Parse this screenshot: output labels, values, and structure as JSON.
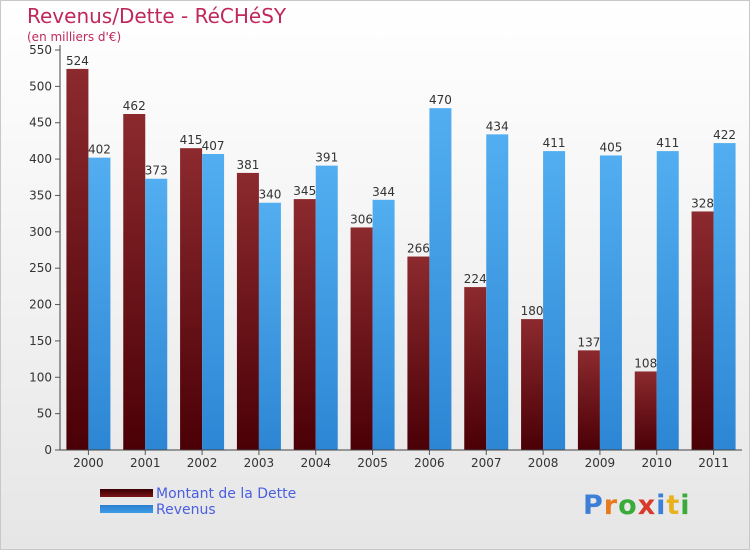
{
  "title": "Revenus/Dette - RéCHéSY",
  "subtitle": "(en milliers d'€)",
  "chart_data": {
    "type": "bar",
    "categories": [
      "2000",
      "2001",
      "2002",
      "2003",
      "2004",
      "2005",
      "2006",
      "2007",
      "2008",
      "2009",
      "2010",
      "2011"
    ],
    "series": [
      {
        "name": "Montant de la Dette",
        "values": [
          524,
          462,
          415,
          381,
          345,
          306,
          266,
          224,
          180,
          137,
          108,
          328
        ],
        "color": "#7a1418"
      },
      {
        "name": "Revenus",
        "values": [
          402,
          373,
          407,
          340,
          391,
          344,
          470,
          434,
          411,
          405,
          411,
          422
        ],
        "color": "#3d9ce6"
      }
    ],
    "yticks": [
      0,
      50,
      100,
      150,
      200,
      250,
      300,
      350,
      400,
      450,
      500,
      550
    ],
    "ylim": [
      0,
      550
    ],
    "grid": false,
    "legend_position": "bottom-left"
  },
  "legend": [
    {
      "label": "Montant de la Dette",
      "color": "#7a1418"
    },
    {
      "label": "Revenus",
      "color": "#3d9ce6"
    }
  ],
  "logo": {
    "letters": [
      "P",
      "r",
      "o",
      "x",
      "i",
      "t",
      "i"
    ],
    "colors": [
      "#3d7fd6",
      "#e87a1e",
      "#3aaa3a",
      "#d8392a",
      "#3d7fd6",
      "#e8b21e",
      "#3aaa3a"
    ]
  }
}
